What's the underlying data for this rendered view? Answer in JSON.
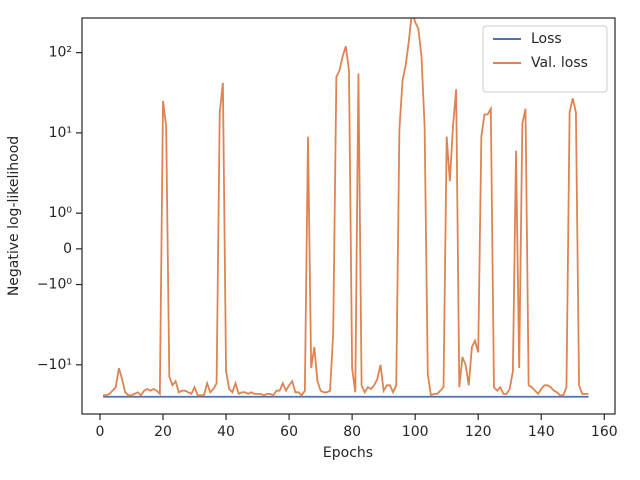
{
  "chart_data": {
    "type": "line",
    "xlabel": "Epochs",
    "ylabel": "Negative log-likelihood",
    "yscale": "symlog",
    "linthresh": 1,
    "linscale": 0.4,
    "legend": "upper right",
    "xlim": [
      -5.7,
      163.4
    ],
    "xticks": [
      0,
      20,
      40,
      60,
      80,
      100,
      120,
      140,
      160
    ],
    "ylim": [
      -41,
      270
    ],
    "yticks": [
      {
        "value": 100,
        "label": "10²"
      },
      {
        "value": 10,
        "label": "10¹"
      },
      {
        "value": 1,
        "label": "10⁰"
      },
      0,
      {
        "value": -1,
        "label": "−10⁰"
      },
      {
        "value": -10,
        "label": "−10¹"
      }
    ],
    "x": [
      1,
      2,
      3,
      4,
      5,
      6,
      7,
      8,
      9,
      10,
      11,
      12,
      13,
      14,
      15,
      16,
      17,
      18,
      19,
      20,
      21,
      22,
      23,
      24,
      25,
      26,
      27,
      28,
      29,
      30,
      31,
      32,
      33,
      34,
      35,
      36,
      37,
      38,
      39,
      40,
      41,
      42,
      43,
      44,
      45,
      46,
      47,
      48,
      49,
      50,
      51,
      52,
      53,
      54,
      55,
      56,
      57,
      58,
      59,
      60,
      61,
      62,
      63,
      64,
      65,
      66,
      67,
      68,
      69,
      70,
      71,
      72,
      73,
      74,
      75,
      76,
      77,
      78,
      79,
      80,
      81,
      82,
      83,
      84,
      85,
      86,
      87,
      88,
      89,
      90,
      91,
      92,
      93,
      94,
      95,
      96,
      97,
      98,
      99,
      100,
      101,
      102,
      103,
      104,
      105,
      106,
      107,
      108,
      109,
      110,
      111,
      112,
      113,
      114,
      115,
      116,
      117,
      118,
      119,
      120,
      121,
      122,
      123,
      124,
      125,
      126,
      127,
      128,
      129,
      130,
      131,
      132,
      133,
      134,
      135,
      136,
      137,
      138,
      139,
      140,
      141,
      142,
      143,
      144,
      145,
      146,
      147,
      148,
      149,
      150,
      151,
      152,
      153,
      154,
      155
    ],
    "series": [
      {
        "name": "Loss",
        "color": "#4c72b0",
        "values": [
          -25,
          -25,
          -25,
          -25,
          -25,
          -25,
          -25,
          -25,
          -25,
          -25,
          -25,
          -25,
          -25,
          -25,
          -25,
          -25,
          -25,
          -25,
          -25,
          -25,
          -25,
          -25,
          -25,
          -25,
          -25,
          -25,
          -25,
          -25,
          -25,
          -25,
          -25,
          -25,
          -25,
          -25,
          -25,
          -25,
          -25,
          -25,
          -25,
          -25,
          -25,
          -25,
          -25,
          -25,
          -25,
          -25,
          -25,
          -25,
          -25,
          -25,
          -25,
          -25,
          -25,
          -25,
          -25,
          -25,
          -25,
          -25,
          -25,
          -25,
          -25,
          -25,
          -25,
          -25,
          -25,
          -25,
          -25,
          -25,
          -25,
          -25,
          -25,
          -25,
          -25,
          -25,
          -25,
          -25,
          -25,
          -25,
          -25,
          -25,
          -25,
          -25,
          -25,
          -25,
          -25,
          -25,
          -25,
          -25,
          -25,
          -25,
          -25,
          -25,
          -25,
          -25,
          -25,
          -25,
          -25,
          -25,
          -25,
          -25,
          -25,
          -25,
          -25,
          -25,
          -25,
          -25,
          -25,
          -25,
          -25,
          -25,
          -25,
          -25,
          -25,
          -25,
          -25,
          -25,
          -25,
          -25,
          -25,
          -25,
          -25,
          -25,
          -25,
          -25,
          -25,
          -25,
          -25,
          -25,
          -25,
          -25,
          -25,
          -25,
          -25,
          -25,
          -25,
          -25,
          -25,
          -25,
          -25,
          -25,
          -25,
          -25,
          -25,
          -25,
          -25,
          -25,
          -25,
          -25,
          -25,
          -25,
          -25,
          -25,
          -25,
          -25,
          -25
        ]
      },
      {
        "name": "Val. loss",
        "color": "#dd8452",
        "values": [
          -24,
          -24,
          -23,
          -21,
          -19,
          -11,
          -15,
          -22,
          -24,
          -24,
          -23,
          -22,
          -24,
          -21,
          -20,
          -21,
          -20,
          -21,
          -23,
          25,
          12,
          -14,
          -18,
          -16,
          -22,
          -21,
          -21,
          -22,
          -23,
          -19,
          -24,
          -24,
          -24,
          -17,
          -22,
          -20,
          -17,
          18,
          42,
          -12,
          -20,
          -22,
          -17,
          -23,
          -22,
          -22,
          -23,
          -22,
          -23,
          -23,
          -23,
          -24,
          -23,
          -23,
          -24,
          -21,
          -21,
          -17,
          -21,
          -18,
          -16,
          -22,
          -22,
          -24,
          -21,
          9,
          -11,
          -6,
          -16,
          -21,
          -22,
          -22,
          -21,
          -4,
          50,
          60,
          90,
          120,
          60,
          -11,
          -22,
          55,
          -18,
          -22,
          -19,
          -20,
          -18,
          -15,
          -10,
          -21,
          -18,
          -18,
          -22,
          -18,
          11,
          45,
          70,
          140,
          320,
          240,
          200,
          90,
          12,
          -13,
          -24,
          -23,
          -23,
          -21,
          -19,
          9,
          2.5,
          12,
          35,
          -19,
          -8,
          -10,
          -18,
          -6,
          -5,
          -7,
          9,
          17,
          17,
          20,
          -19,
          -21,
          -19,
          -23,
          -23,
          -20,
          -12,
          6,
          -11,
          13,
          20,
          -18,
          -19,
          -21,
          -23,
          -20,
          -18,
          -18,
          -19,
          -21,
          -22,
          -24,
          -24,
          -19,
          18,
          27,
          18,
          -18,
          -23,
          -23,
          -23
        ]
      }
    ]
  }
}
